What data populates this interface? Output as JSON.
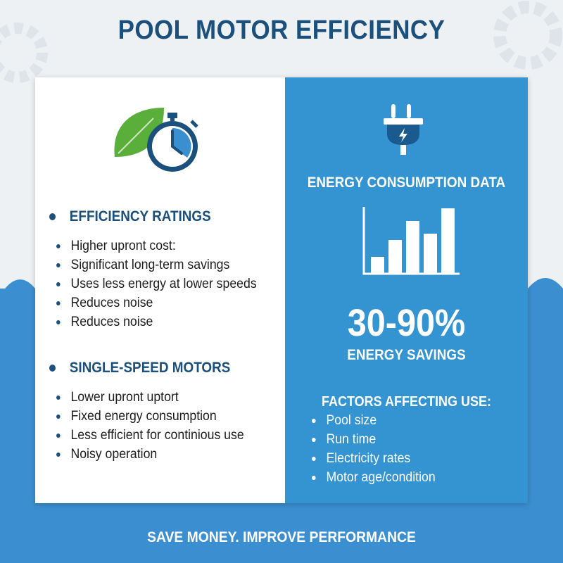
{
  "title": "POOL MOTOR EFFICIENCY",
  "left": {
    "sections": [
      {
        "heading": "EFFICIENCY RATINGS",
        "items": [
          "Higher upront cost:",
          "Significant long-term savings",
          "Uses less energy at lower speeds",
          "Reduces noise",
          "Reduces noise"
        ]
      },
      {
        "heading": "SINGLE-SPEED MOTORS",
        "items": [
          "Lower upront uptort",
          "Fixed energy consumption",
          "Less efficient for continious use",
          "Noisy operation"
        ]
      }
    ]
  },
  "right": {
    "heading": "ENERGY CONSUMPTION DATA",
    "big_stat": "30-90%",
    "stat_label": "ENERGY SAVINGS",
    "factors_heading": "FACTORS AFFECTING USE:",
    "factors": [
      "Pool size",
      "Run time",
      "Electricity rates",
      "Motor age/condition"
    ]
  },
  "footer": "SAVE MONEY. IMPROVE PERFORMANCE",
  "colors": {
    "primary": "#1b4f7c",
    "panel_blue": "#3494d1",
    "leaf_green": "#5aae3a"
  },
  "icons": [
    "leaf-icon",
    "stopwatch-icon",
    "plug-icon",
    "bar-chart-icon",
    "gear-icon"
  ]
}
